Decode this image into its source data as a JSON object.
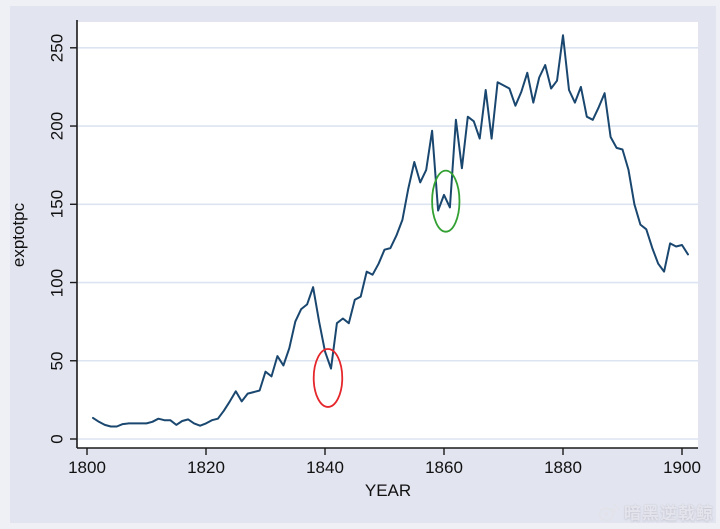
{
  "chart_data": {
    "type": "line",
    "title": "",
    "xlabel": "YEAR",
    "ylabel": "exptotpc",
    "xticks": [
      1800,
      1820,
      1840,
      1860,
      1880,
      1900
    ],
    "yticks": [
      0,
      50,
      100,
      150,
      200,
      250
    ],
    "xlim": [
      1798.3,
      1902.7
    ],
    "ylim": [
      0,
      266
    ],
    "grid": "horizontal",
    "legend": "none",
    "series": [
      {
        "name": "exptotpc",
        "x": [
          1801,
          1802,
          1803,
          1804,
          1805,
          1806,
          1807,
          1808,
          1809,
          1810,
          1811,
          1812,
          1813,
          1814,
          1815,
          1816,
          1817,
          1818,
          1819,
          1820,
          1821,
          1822,
          1823,
          1824,
          1825,
          1826,
          1827,
          1828,
          1829,
          1830,
          1831,
          1832,
          1833,
          1834,
          1835,
          1836,
          1837,
          1838,
          1839,
          1840,
          1841,
          1842,
          1843,
          1844,
          1845,
          1846,
          1847,
          1848,
          1849,
          1850,
          1851,
          1852,
          1853,
          1854,
          1855,
          1856,
          1857,
          1858,
          1859,
          1860,
          1861,
          1862,
          1863,
          1864,
          1865,
          1866,
          1867,
          1868,
          1869,
          1870,
          1871,
          1872,
          1873,
          1874,
          1875,
          1876,
          1877,
          1878,
          1879,
          1880,
          1881,
          1882,
          1883,
          1884,
          1885,
          1886,
          1887,
          1888,
          1889,
          1890,
          1891,
          1892,
          1893,
          1894,
          1895,
          1896,
          1897,
          1898,
          1899,
          1900,
          1901
        ],
        "values": [
          13.5,
          11,
          9,
          8,
          8,
          9.5,
          10,
          10,
          10,
          10,
          11,
          13,
          12,
          12,
          9,
          11.5,
          12.5,
          10,
          8.5,
          10,
          12,
          13,
          18,
          24,
          30.5,
          24,
          29,
          30,
          31,
          43,
          40,
          53,
          47,
          58,
          75,
          83,
          86,
          97,
          75,
          56,
          45,
          74,
          77,
          74,
          89,
          91,
          107,
          105,
          112,
          121,
          122,
          130,
          140,
          160,
          177,
          164,
          172,
          197,
          146,
          156,
          148,
          204,
          173,
          206,
          203,
          192,
          223,
          192,
          228,
          226,
          224,
          213,
          222,
          234,
          215,
          231,
          239,
          224,
          229,
          258,
          223,
          215,
          225,
          206,
          204,
          212,
          221,
          193,
          186,
          185,
          172,
          150,
          137,
          134,
          122,
          112,
          107,
          125,
          123,
          124,
          118
        ]
      }
    ],
    "annotations": [
      {
        "name": "red-ellipse",
        "shape": "ellipse",
        "center_year": 1840.5,
        "center_value": 39,
        "radius_years": 2.4,
        "radius_value": 18.5,
        "color": "#e5262b"
      },
      {
        "name": "green-ellipse",
        "shape": "ellipse",
        "center_year": 1860.3,
        "center_value": 152,
        "radius_years": 2.3,
        "radius_value": 19.5,
        "color": "#33a033"
      }
    ],
    "colors": {
      "line": "#1a476f",
      "background": "#e2e4ef",
      "plot_background": "#ffffff",
      "grid": "#dde4f1",
      "axis": "#1a1a1a"
    }
  },
  "watermark": {
    "icon": "weibo-icon",
    "text": "暗黑逆戟鲸"
  }
}
